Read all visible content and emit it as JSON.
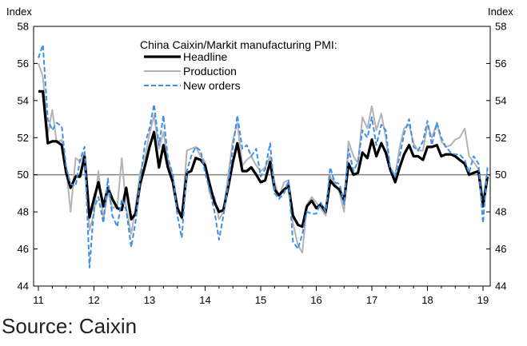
{
  "chart_data": {
    "type": "line",
    "title": "",
    "ylabel_left": "Index",
    "ylabel_right": "Index",
    "ylim": [
      44,
      58
    ],
    "yticks": [
      44,
      46,
      48,
      50,
      52,
      54,
      56,
      58
    ],
    "xlim": [
      2011.0,
      2019.1
    ],
    "xticks": [
      {
        "label": "11",
        "x": 2011
      },
      {
        "label": "12",
        "x": 2012
      },
      {
        "label": "13",
        "x": 2013
      },
      {
        "label": "14",
        "x": 2014
      },
      {
        "label": "15",
        "x": 2015
      },
      {
        "label": "16",
        "x": 2016
      },
      {
        "label": "17",
        "x": 2017
      },
      {
        "label": "18",
        "x": 2018
      },
      {
        "label": "19",
        "x": 2019
      }
    ],
    "reference_line": 50,
    "grid": false,
    "legend_position": "top-center",
    "legend_title": "China Caixin/Markit manufacturing PMI:",
    "series": [
      {
        "name": "Headline",
        "color": "#000000",
        "style": "solid-thick",
        "points": [
          [
            2011.0,
            54.5
          ],
          [
            2011.08,
            54.5
          ],
          [
            2011.17,
            51.7
          ],
          [
            2011.25,
            51.8
          ],
          [
            2011.33,
            51.8
          ],
          [
            2011.42,
            51.6
          ],
          [
            2011.5,
            50.1
          ],
          [
            2011.58,
            49.3
          ],
          [
            2011.67,
            49.9
          ],
          [
            2011.75,
            49.9
          ],
          [
            2011.83,
            51.0
          ],
          [
            2011.92,
            47.7
          ],
          [
            2012.0,
            48.7
          ],
          [
            2012.08,
            49.6
          ],
          [
            2012.17,
            48.3
          ],
          [
            2012.25,
            49.3
          ],
          [
            2012.33,
            48.7
          ],
          [
            2012.42,
            48.2
          ],
          [
            2012.5,
            48.1
          ],
          [
            2012.58,
            49.3
          ],
          [
            2012.67,
            47.6
          ],
          [
            2012.75,
            47.9
          ],
          [
            2012.83,
            49.5
          ],
          [
            2012.92,
            50.5
          ],
          [
            2013.0,
            51.5
          ],
          [
            2013.08,
            52.3
          ],
          [
            2013.17,
            50.4
          ],
          [
            2013.25,
            51.6
          ],
          [
            2013.33,
            50.4
          ],
          [
            2013.42,
            49.6
          ],
          [
            2013.5,
            48.2
          ],
          [
            2013.58,
            47.7
          ],
          [
            2013.67,
            50.1
          ],
          [
            2013.75,
            50.2
          ],
          [
            2013.83,
            50.9
          ],
          [
            2013.92,
            50.8
          ],
          [
            2014.0,
            50.5
          ],
          [
            2014.08,
            49.5
          ],
          [
            2014.17,
            48.5
          ],
          [
            2014.25,
            48.0
          ],
          [
            2014.33,
            48.1
          ],
          [
            2014.42,
            49.4
          ],
          [
            2014.5,
            50.7
          ],
          [
            2014.58,
            51.7
          ],
          [
            2014.67,
            50.2
          ],
          [
            2014.75,
            50.2
          ],
          [
            2014.83,
            50.4
          ],
          [
            2014.92,
            50.0
          ],
          [
            2015.0,
            49.6
          ],
          [
            2015.08,
            49.7
          ],
          [
            2015.17,
            50.7
          ],
          [
            2015.25,
            49.2
          ],
          [
            2015.33,
            48.9
          ],
          [
            2015.42,
            49.2
          ],
          [
            2015.5,
            49.4
          ],
          [
            2015.58,
            47.8
          ],
          [
            2015.67,
            47.3
          ],
          [
            2015.75,
            47.2
          ],
          [
            2015.83,
            48.3
          ],
          [
            2015.92,
            48.6
          ],
          [
            2016.0,
            48.2
          ],
          [
            2016.08,
            48.4
          ],
          [
            2016.17,
            48.0
          ],
          [
            2016.25,
            49.7
          ],
          [
            2016.33,
            49.4
          ],
          [
            2016.42,
            49.2
          ],
          [
            2016.5,
            48.6
          ],
          [
            2016.58,
            50.6
          ],
          [
            2016.67,
            50.0
          ],
          [
            2016.75,
            50.1
          ],
          [
            2016.83,
            51.2
          ],
          [
            2016.92,
            50.9
          ],
          [
            2017.0,
            51.9
          ],
          [
            2017.08,
            51.0
          ],
          [
            2017.17,
            51.7
          ],
          [
            2017.25,
            51.2
          ],
          [
            2017.33,
            50.3
          ],
          [
            2017.42,
            49.6
          ],
          [
            2017.5,
            50.4
          ],
          [
            2017.58,
            51.1
          ],
          [
            2017.67,
            51.6
          ],
          [
            2017.75,
            51.0
          ],
          [
            2017.83,
            51.0
          ],
          [
            2017.92,
            50.8
          ],
          [
            2018.0,
            51.5
          ],
          [
            2018.08,
            51.5
          ],
          [
            2018.17,
            51.6
          ],
          [
            2018.25,
            51.0
          ],
          [
            2018.33,
            51.1
          ],
          [
            2018.42,
            51.1
          ],
          [
            2018.5,
            51.0
          ],
          [
            2018.58,
            50.8
          ],
          [
            2018.67,
            50.6
          ],
          [
            2018.75,
            50.0
          ],
          [
            2018.83,
            50.1
          ],
          [
            2018.92,
            50.2
          ],
          [
            2019.0,
            48.3
          ],
          [
            2019.08,
            49.9
          ]
        ]
      },
      {
        "name": "Production",
        "color": "#b3b3b3",
        "style": "solid",
        "points": [
          [
            2011.0,
            56.0
          ],
          [
            2011.08,
            55.3
          ],
          [
            2011.17,
            52.2
          ],
          [
            2011.25,
            53.5
          ],
          [
            2011.33,
            51.7
          ],
          [
            2011.42,
            51.9
          ],
          [
            2011.5,
            50.3
          ],
          [
            2011.58,
            48.0
          ],
          [
            2011.67,
            50.9
          ],
          [
            2011.75,
            50.7
          ],
          [
            2011.83,
            51.2
          ],
          [
            2011.92,
            47.0
          ],
          [
            2012.0,
            47.9
          ],
          [
            2012.08,
            50.2
          ],
          [
            2012.17,
            47.6
          ],
          [
            2012.25,
            49.1
          ],
          [
            2012.33,
            48.2
          ],
          [
            2012.42,
            48.3
          ],
          [
            2012.5,
            50.9
          ],
          [
            2012.58,
            48.2
          ],
          [
            2012.67,
            46.8
          ],
          [
            2012.75,
            48.3
          ],
          [
            2012.83,
            50.1
          ],
          [
            2012.92,
            51.0
          ],
          [
            2013.0,
            52.2
          ],
          [
            2013.08,
            53.2
          ],
          [
            2013.17,
            51.4
          ],
          [
            2013.25,
            52.3
          ],
          [
            2013.33,
            50.8
          ],
          [
            2013.42,
            49.9
          ],
          [
            2013.5,
            48.4
          ],
          [
            2013.58,
            47.6
          ],
          [
            2013.67,
            51.3
          ],
          [
            2013.75,
            51.4
          ],
          [
            2013.83,
            51.5
          ],
          [
            2013.92,
            51.0
          ],
          [
            2014.0,
            50.7
          ],
          [
            2014.08,
            49.0
          ],
          [
            2014.17,
            48.8
          ],
          [
            2014.25,
            47.6
          ],
          [
            2014.33,
            48.0
          ],
          [
            2014.42,
            50.1
          ],
          [
            2014.5,
            51.9
          ],
          [
            2014.58,
            52.8
          ],
          [
            2014.67,
            50.5
          ],
          [
            2014.75,
            50.8
          ],
          [
            2014.83,
            51.0
          ],
          [
            2014.92,
            50.5
          ],
          [
            2015.0,
            50.2
          ],
          [
            2015.08,
            50.4
          ],
          [
            2015.17,
            51.0
          ],
          [
            2015.25,
            49.6
          ],
          [
            2015.33,
            48.8
          ],
          [
            2015.42,
            49.6
          ],
          [
            2015.5,
            49.7
          ],
          [
            2015.58,
            47.4
          ],
          [
            2015.67,
            46.2
          ],
          [
            2015.75,
            45.8
          ],
          [
            2015.83,
            48.4
          ],
          [
            2015.92,
            48.8
          ],
          [
            2016.0,
            48.5
          ],
          [
            2016.08,
            48.2
          ],
          [
            2016.17,
            47.8
          ],
          [
            2016.25,
            49.9
          ],
          [
            2016.33,
            49.6
          ],
          [
            2016.42,
            49.0
          ],
          [
            2016.5,
            48.0
          ],
          [
            2016.58,
            51.8
          ],
          [
            2016.67,
            51.0
          ],
          [
            2016.75,
            50.6
          ],
          [
            2016.83,
            53.1
          ],
          [
            2016.92,
            52.5
          ],
          [
            2017.0,
            53.7
          ],
          [
            2017.08,
            52.4
          ],
          [
            2017.17,
            53.3
          ],
          [
            2017.25,
            52.0
          ],
          [
            2017.33,
            50.2
          ],
          [
            2017.42,
            50.0
          ],
          [
            2017.5,
            51.5
          ],
          [
            2017.58,
            52.5
          ],
          [
            2017.67,
            52.7
          ],
          [
            2017.75,
            51.7
          ],
          [
            2017.83,
            51.3
          ],
          [
            2017.92,
            51.3
          ],
          [
            2018.0,
            52.7
          ],
          [
            2018.08,
            52.0
          ],
          [
            2018.17,
            52.8
          ],
          [
            2018.25,
            51.8
          ],
          [
            2018.33,
            51.5
          ],
          [
            2018.42,
            51.6
          ],
          [
            2018.5,
            51.9
          ],
          [
            2018.58,
            52.0
          ],
          [
            2018.67,
            52.5
          ],
          [
            2018.75,
            51.0
          ],
          [
            2018.83,
            50.7
          ],
          [
            2018.92,
            50.3
          ],
          [
            2019.0,
            48.5
          ],
          [
            2019.08,
            50.3
          ]
        ]
      },
      {
        "name": "New orders",
        "color": "#3f8fe8",
        "style": "dashed",
        "points": [
          [
            2011.0,
            56.3
          ],
          [
            2011.08,
            57.0
          ],
          [
            2011.17,
            53.0
          ],
          [
            2011.25,
            52.4
          ],
          [
            2011.33,
            52.8
          ],
          [
            2011.42,
            52.6
          ],
          [
            2011.5,
            50.4
          ],
          [
            2011.58,
            49.5
          ],
          [
            2011.67,
            49.4
          ],
          [
            2011.75,
            50.8
          ],
          [
            2011.83,
            51.5
          ],
          [
            2011.92,
            45.0
          ],
          [
            2012.0,
            48.2
          ],
          [
            2012.08,
            48.8
          ],
          [
            2012.17,
            47.4
          ],
          [
            2012.25,
            49.8
          ],
          [
            2012.33,
            47.8
          ],
          [
            2012.42,
            47.2
          ],
          [
            2012.5,
            48.7
          ],
          [
            2012.58,
            48.1
          ],
          [
            2012.67,
            46.1
          ],
          [
            2012.75,
            47.5
          ],
          [
            2012.83,
            49.7
          ],
          [
            2012.92,
            51.7
          ],
          [
            2013.0,
            52.5
          ],
          [
            2013.08,
            53.8
          ],
          [
            2013.17,
            51.6
          ],
          [
            2013.25,
            53.2
          ],
          [
            2013.33,
            50.9
          ],
          [
            2013.42,
            50.0
          ],
          [
            2013.5,
            47.8
          ],
          [
            2013.58,
            46.6
          ],
          [
            2013.67,
            50.2
          ],
          [
            2013.75,
            51.0
          ],
          [
            2013.83,
            51.5
          ],
          [
            2013.92,
            51.3
          ],
          [
            2014.0,
            50.1
          ],
          [
            2014.08,
            49.2
          ],
          [
            2014.17,
            48.0
          ],
          [
            2014.25,
            46.5
          ],
          [
            2014.33,
            47.8
          ],
          [
            2014.42,
            49.6
          ],
          [
            2014.5,
            51.5
          ],
          [
            2014.58,
            53.2
          ],
          [
            2014.67,
            51.4
          ],
          [
            2014.75,
            51.6
          ],
          [
            2014.83,
            51.0
          ],
          [
            2014.92,
            51.4
          ],
          [
            2015.0,
            49.9
          ],
          [
            2015.08,
            50.3
          ],
          [
            2015.17,
            51.7
          ],
          [
            2015.25,
            49.0
          ],
          [
            2015.33,
            48.7
          ],
          [
            2015.42,
            49.0
          ],
          [
            2015.5,
            49.7
          ],
          [
            2015.58,
            46.4
          ],
          [
            2015.67,
            46.0
          ],
          [
            2015.75,
            46.8
          ],
          [
            2015.83,
            48.0
          ],
          [
            2015.92,
            47.9
          ],
          [
            2016.0,
            47.9
          ],
          [
            2016.08,
            48.5
          ],
          [
            2016.17,
            48.0
          ],
          [
            2016.25,
            50.4
          ],
          [
            2016.33,
            49.6
          ],
          [
            2016.42,
            49.5
          ],
          [
            2016.5,
            48.4
          ],
          [
            2016.58,
            51.4
          ],
          [
            2016.67,
            50.2
          ],
          [
            2016.75,
            50.7
          ],
          [
            2016.83,
            52.4
          ],
          [
            2016.92,
            52.0
          ],
          [
            2017.0,
            53.1
          ],
          [
            2017.08,
            51.6
          ],
          [
            2017.17,
            52.7
          ],
          [
            2017.25,
            52.4
          ],
          [
            2017.33,
            50.4
          ],
          [
            2017.42,
            49.9
          ],
          [
            2017.5,
            51.0
          ],
          [
            2017.58,
            52.2
          ],
          [
            2017.67,
            53.0
          ],
          [
            2017.75,
            51.5
          ],
          [
            2017.83,
            51.3
          ],
          [
            2017.92,
            51.8
          ],
          [
            2018.0,
            52.9
          ],
          [
            2018.08,
            51.6
          ],
          [
            2018.17,
            52.8
          ],
          [
            2018.25,
            52.0
          ],
          [
            2018.33,
            51.5
          ],
          [
            2018.42,
            51.2
          ],
          [
            2018.5,
            51.1
          ],
          [
            2018.58,
            51.1
          ],
          [
            2018.67,
            50.8
          ],
          [
            2018.75,
            50.1
          ],
          [
            2018.83,
            51.0
          ],
          [
            2018.92,
            50.6
          ],
          [
            2019.0,
            47.4
          ],
          [
            2019.08,
            50.4
          ]
        ]
      }
    ]
  },
  "source_note": "Source: Caixin"
}
